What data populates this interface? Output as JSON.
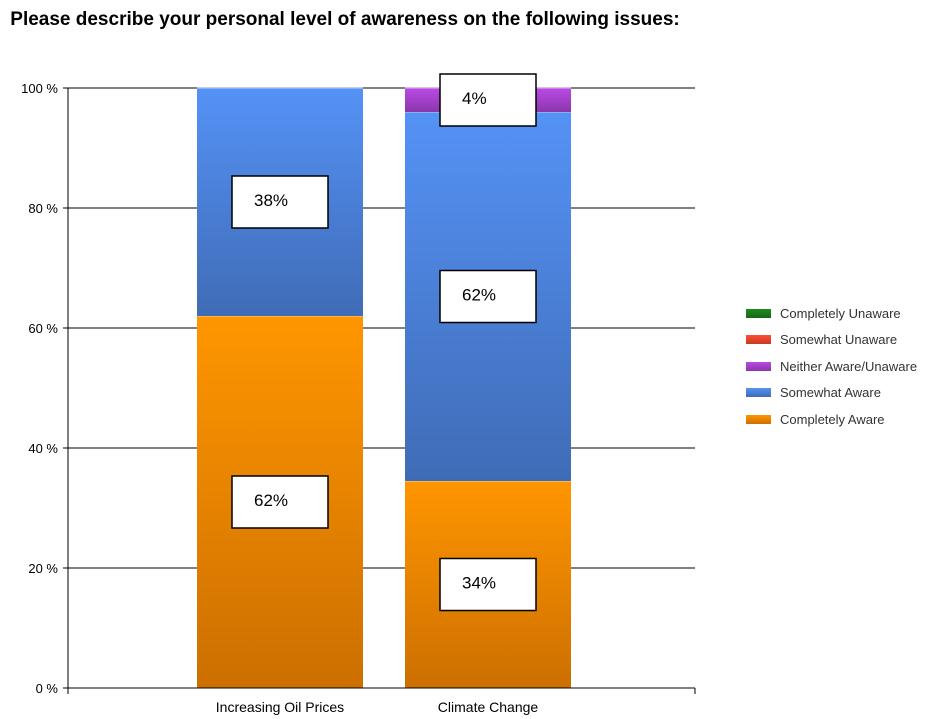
{
  "chart_data": {
    "type": "bar",
    "stacked": true,
    "title": "Please describe your personal level of awareness on the following issues:",
    "categories": [
      "Increasing Oil Prices",
      "Climate Change"
    ],
    "yticks": [
      "0 %",
      "20 %",
      "40 %",
      "60 %",
      "80 %",
      "100 %"
    ],
    "ylim": [
      0,
      100
    ],
    "grid": true,
    "legend_position": "right",
    "series": [
      {
        "name": "Completely Aware",
        "values": [
          62,
          34.5
        ],
        "labels": [
          "62%",
          "34%"
        ],
        "color": "#f08200"
      },
      {
        "name": "Somewhat Aware",
        "values": [
          38,
          61.5
        ],
        "labels": [
          "38%",
          "62%"
        ],
        "color": "#4a7fd6"
      },
      {
        "name": "Neither Aware/Unaware",
        "values": [
          0,
          4
        ],
        "labels": [
          "",
          "4%"
        ],
        "color": "#a240c8"
      },
      {
        "name": "Somewhat Unaware",
        "values": [
          0,
          0
        ],
        "labels": [
          "",
          ""
        ],
        "color": "#e8442a"
      },
      {
        "name": "Completely Unaware",
        "values": [
          0,
          0
        ],
        "labels": [
          "",
          ""
        ],
        "color": "#1a7a1a"
      }
    ],
    "legend_order": [
      "Completely Unaware",
      "Somewhat Unaware",
      "Neither Aware/Unaware",
      "Somewhat Aware",
      "Completely Aware"
    ]
  }
}
